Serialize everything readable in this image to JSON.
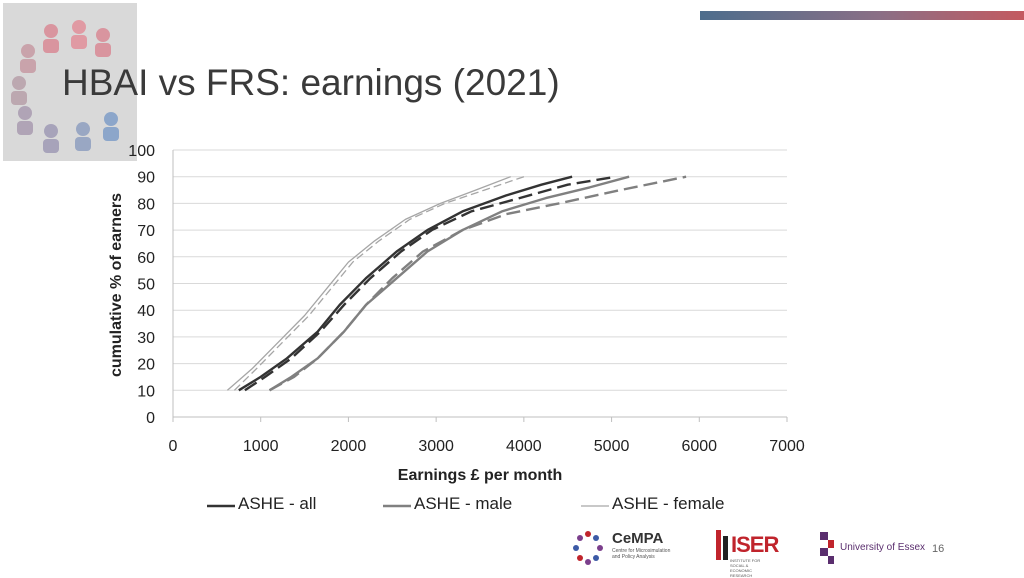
{
  "slide": {
    "title": "HBAI vs FRS: earnings (2021)",
    "page_number": "16"
  },
  "logos": {
    "cempa": {
      "name": "CeMPA",
      "subtitle": "Centre for Microsimulation and Policy Analysis"
    },
    "iser": {
      "name": "ISER",
      "subtitle": "INSTITUTE FOR SOCIAL & ECONOMIC RESEARCH"
    },
    "essex": {
      "name": "University of Essex"
    }
  },
  "colors": {
    "top_bar_start": "#4d6d8c",
    "top_bar_end": "#c45a60",
    "series_all": "#333333",
    "series_male": "#808080",
    "series_female": "#a6a6a6",
    "grid": "#d9d9d9"
  },
  "chart_data": {
    "type": "line",
    "title": "",
    "xlabel": "Earnings £ per month",
    "ylabel": "cumulative % of earners",
    "xlim": [
      0,
      7000
    ],
    "ylim": [
      0,
      100
    ],
    "xticks": [
      "0",
      "1000",
      "2000",
      "3000",
      "4000",
      "5000",
      "6000",
      "7000"
    ],
    "yticks": [
      "0",
      "10",
      "20",
      "30",
      "40",
      "50",
      "60",
      "70",
      "80",
      "90",
      "100"
    ],
    "grid": "horizontal",
    "legend_position": "bottom",
    "legend": [
      "ASHE - all",
      "ASHE - male",
      "ASHE - female"
    ],
    "series": [
      {
        "name": "ASHE - all",
        "style": "solid",
        "color": "#333333",
        "width": 2.4,
        "points": [
          [
            750,
            10
          ],
          [
            1000,
            15
          ],
          [
            1300,
            22
          ],
          [
            1650,
            32
          ],
          [
            1900,
            42
          ],
          [
            2200,
            52
          ],
          [
            2550,
            62
          ],
          [
            2900,
            70
          ],
          [
            3300,
            77
          ],
          [
            3800,
            83
          ],
          [
            4200,
            87
          ],
          [
            4550,
            90
          ]
        ]
      },
      {
        "name": "",
        "style": "dashed",
        "color": "#333333",
        "width": 2.4,
        "points": [
          [
            820,
            10
          ],
          [
            1050,
            15
          ],
          [
            1350,
            22
          ],
          [
            1680,
            32
          ],
          [
            1950,
            42
          ],
          [
            2250,
            52
          ],
          [
            2600,
            62
          ],
          [
            2950,
            70
          ],
          [
            3400,
            77
          ],
          [
            3950,
            82
          ],
          [
            4500,
            87
          ],
          [
            5050,
            90
          ]
        ]
      },
      {
        "name": "ASHE - male",
        "style": "solid",
        "color": "#808080",
        "width": 2.4,
        "points": [
          [
            1100,
            10
          ],
          [
            1350,
            15
          ],
          [
            1650,
            22
          ],
          [
            1950,
            32
          ],
          [
            2200,
            42
          ],
          [
            2550,
            52
          ],
          [
            2900,
            62
          ],
          [
            3300,
            70
          ],
          [
            3750,
            77
          ],
          [
            4250,
            82
          ],
          [
            4750,
            86
          ],
          [
            5200,
            90
          ]
        ]
      },
      {
        "name": "",
        "style": "dashed",
        "color": "#808080",
        "width": 2.4,
        "points": [
          [
            1100,
            10
          ],
          [
            1380,
            15
          ],
          [
            1650,
            22
          ],
          [
            1950,
            32
          ],
          [
            2200,
            42
          ],
          [
            2500,
            52
          ],
          [
            2850,
            62
          ],
          [
            3300,
            70
          ],
          [
            3800,
            76
          ],
          [
            4400,
            80
          ],
          [
            5100,
            85
          ],
          [
            5850,
            90
          ]
        ]
      },
      {
        "name": "ASHE - female",
        "style": "solid",
        "color": "#a6a6a6",
        "width": 1.3,
        "points": [
          [
            620,
            10
          ],
          [
            900,
            18
          ],
          [
            1200,
            28
          ],
          [
            1500,
            38
          ],
          [
            1750,
            48
          ],
          [
            2000,
            58
          ],
          [
            2300,
            66
          ],
          [
            2650,
            74
          ],
          [
            3050,
            80
          ],
          [
            3450,
            85
          ],
          [
            3850,
            90
          ]
        ]
      },
      {
        "name": "",
        "style": "dashed",
        "color": "#a6a6a6",
        "width": 1.3,
        "points": [
          [
            700,
            10
          ],
          [
            950,
            18
          ],
          [
            1250,
            28
          ],
          [
            1550,
            38
          ],
          [
            1800,
            48
          ],
          [
            2050,
            58
          ],
          [
            2350,
            66
          ],
          [
            2700,
            74
          ],
          [
            3100,
            80
          ],
          [
            3550,
            85
          ],
          [
            4000,
            90
          ]
        ]
      }
    ]
  }
}
